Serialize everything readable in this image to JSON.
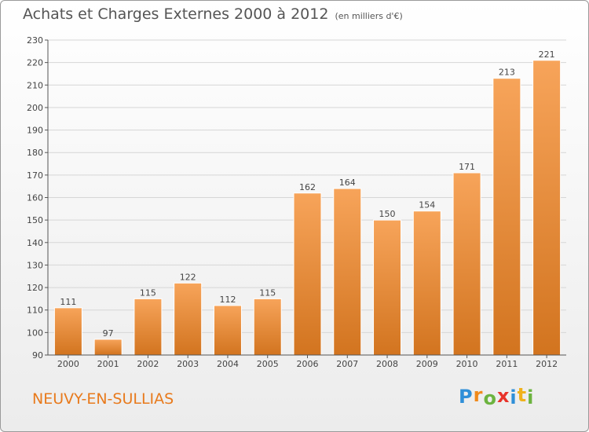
{
  "header": {
    "title": "Achats et Charges Externes 2000 à 2012",
    "unit": "(en milliers d'€)"
  },
  "footer": {
    "place": "NEUVY-EN-SULLIAS",
    "logo": {
      "letters": [
        "P",
        "r",
        "o",
        "x",
        "i",
        "t",
        "i"
      ],
      "colors": [
        "#2f8fd8",
        "#f08a1c",
        "#6cb33f",
        "#e8332a",
        "#2f8fd8",
        "#f0b21c",
        "#6cb33f"
      ]
    }
  },
  "colors": {
    "bar_light": "#f7a45a",
    "bar_dark": "#d2741f",
    "grid": "#d6d6d6",
    "axis": "#555555"
  },
  "chart_data": {
    "type": "bar",
    "title": "Achats et Charges Externes 2000 à 2012",
    "subtitle": "(en milliers d'€)",
    "categories": [
      "2000",
      "2001",
      "2002",
      "2003",
      "2004",
      "2005",
      "2006",
      "2007",
      "2008",
      "2009",
      "2010",
      "2011",
      "2012"
    ],
    "values": [
      111,
      97,
      115,
      122,
      112,
      115,
      162,
      164,
      150,
      154,
      171,
      213,
      221
    ],
    "ylim": [
      90,
      230
    ],
    "yticks": [
      90,
      100,
      110,
      120,
      130,
      140,
      150,
      160,
      170,
      180,
      190,
      200,
      210,
      220,
      230
    ],
    "grid": true,
    "legend": "none"
  }
}
